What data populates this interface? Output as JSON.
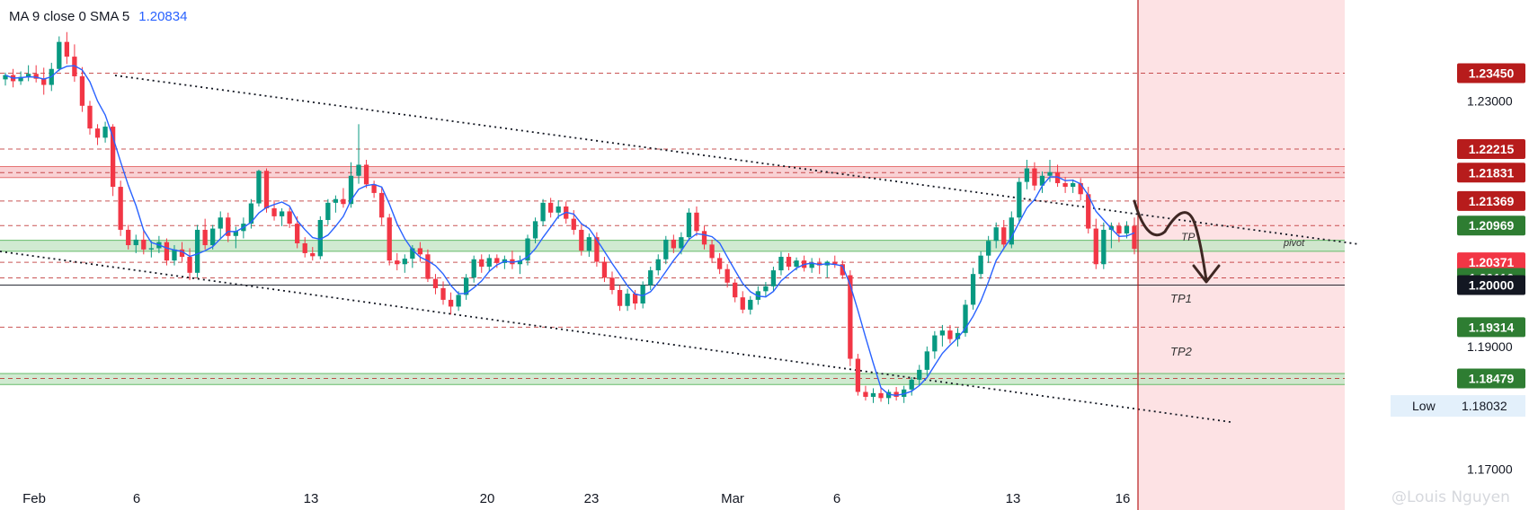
{
  "indicator": {
    "label": "MA 9 close 0 SMA 5",
    "value": "1.20834",
    "color": "#2962ff"
  },
  "watermark": "@Louis Nguyen",
  "colors": {
    "up": "#089981",
    "down": "#f23645",
    "ma": "#2962ff",
    "future_zone": "#fde2e4",
    "green_zone": "#c8e6c9",
    "red_zone": "#f8c9cc"
  },
  "chart_data": {
    "type": "candlestick",
    "ylim": [
      1.1665,
      1.2395
    ],
    "y_ticks": [
      "1.23000",
      "1.19000",
      "1.17000"
    ],
    "x_ticks": [
      "Feb",
      "6",
      "13",
      "20",
      "23",
      "Mar",
      "6",
      "13",
      "16"
    ],
    "price_tags": [
      {
        "value": "1.23450",
        "kind": "dark-red"
      },
      {
        "value": "1.22215",
        "kind": "dark-red"
      },
      {
        "value": "1.21831",
        "kind": "dark-red"
      },
      {
        "value": "1.21369",
        "kind": "dark-red"
      },
      {
        "value": "1.20969",
        "kind": "green"
      },
      {
        "value": "1.20371",
        "kind": "red"
      },
      {
        "value": "1.20116",
        "kind": "green"
      },
      {
        "value": "1.20000",
        "kind": "black"
      },
      {
        "value": "1.19314",
        "kind": "green"
      },
      {
        "value": "1.18479",
        "kind": "green"
      }
    ],
    "low_tag": {
      "label": "Low",
      "value": "1.18032"
    },
    "levels": [
      1.2345,
      1.22215,
      1.21831,
      1.21369,
      1.20969,
      1.20371,
      1.20116,
      1.2,
      1.19314,
      1.18479
    ],
    "zones": [
      {
        "from": 1.2175,
        "to": 1.2193,
        "color": "red"
      },
      {
        "from": 1.2055,
        "to": 1.2073,
        "color": "green"
      },
      {
        "from": 1.1838,
        "to": 1.1856,
        "color": "green"
      }
    ],
    "annotations": [
      "TP",
      "pivot",
      "TP1",
      "TP2"
    ],
    "candles": [
      [
        1.2335,
        1.2346,
        1.2325,
        1.2342
      ],
      [
        1.2342,
        1.2352,
        1.2322,
        1.2332
      ],
      [
        1.2332,
        1.2348,
        1.2326,
        1.2339
      ],
      [
        1.2339,
        1.2358,
        1.2332,
        1.2344
      ],
      [
        1.2344,
        1.2358,
        1.233,
        1.2336
      ],
      [
        1.2336,
        1.2354,
        1.231,
        1.2326
      ],
      [
        1.2326,
        1.2362,
        1.2316,
        1.2352
      ],
      [
        1.2352,
        1.2405,
        1.2348,
        1.2396
      ],
      [
        1.2396,
        1.2412,
        1.236,
        1.2372
      ],
      [
        1.2372,
        1.2392,
        1.2331,
        1.234
      ],
      [
        1.234,
        1.2355,
        1.2282,
        1.2292
      ],
      [
        1.2292,
        1.23,
        1.2245,
        1.2255
      ],
      [
        1.2255,
        1.2262,
        1.2228,
        1.224
      ],
      [
        1.224,
        1.2266,
        1.2232,
        1.2258
      ],
      [
        1.2258,
        1.2262,
        1.2145,
        1.216
      ],
      [
        1.216,
        1.217,
        1.208,
        1.209
      ],
      [
        1.209,
        1.2098,
        1.2058,
        1.2065
      ],
      [
        1.2065,
        1.2082,
        1.2052,
        1.2074
      ],
      [
        1.2074,
        1.209,
        1.205,
        1.2058
      ],
      [
        1.2058,
        1.2072,
        1.2045,
        1.206
      ],
      [
        1.206,
        1.208,
        1.2052,
        1.207
      ],
      [
        1.207,
        1.2076,
        1.2032,
        1.204
      ],
      [
        1.204,
        1.2065,
        1.2032,
        1.2058
      ],
      [
        1.2058,
        1.207,
        1.2038,
        1.2046
      ],
      [
        1.2046,
        1.206,
        1.2008,
        1.202
      ],
      [
        1.202,
        1.2098,
        1.2012,
        1.209
      ],
      [
        1.209,
        1.2108,
        1.2058,
        1.2065
      ],
      [
        1.2065,
        1.2098,
        1.2058,
        1.2092
      ],
      [
        1.2092,
        1.212,
        1.2076,
        1.211
      ],
      [
        1.211,
        1.2118,
        1.207,
        1.208
      ],
      [
        1.208,
        1.2095,
        1.206,
        1.2088
      ],
      [
        1.2088,
        1.211,
        1.2076,
        1.21
      ],
      [
        1.21,
        1.214,
        1.2092,
        1.2133
      ],
      [
        1.2133,
        1.2188,
        1.2128,
        1.2186
      ],
      [
        1.2186,
        1.219,
        1.2118,
        1.2125
      ],
      [
        1.2125,
        1.2138,
        1.2105,
        1.2112
      ],
      [
        1.2112,
        1.2125,
        1.2096,
        1.212
      ],
      [
        1.212,
        1.2126,
        1.2093,
        1.21
      ],
      [
        1.21,
        1.2112,
        1.206,
        1.2068
      ],
      [
        1.2068,
        1.2078,
        1.2045,
        1.2052
      ],
      [
        1.2052,
        1.2062,
        1.204,
        1.2047
      ],
      [
        1.2047,
        1.2112,
        1.2042,
        1.2106
      ],
      [
        1.2106,
        1.214,
        1.2098,
        1.2134
      ],
      [
        1.2134,
        1.2146,
        1.2118,
        1.214
      ],
      [
        1.214,
        1.2158,
        1.2126,
        1.2132
      ],
      [
        1.2132,
        1.22,
        1.2126,
        1.2178
      ],
      [
        1.2178,
        1.2262,
        1.2165,
        1.2196
      ],
      [
        1.2196,
        1.2204,
        1.2158,
        1.2164
      ],
      [
        1.2164,
        1.217,
        1.2142,
        1.215
      ],
      [
        1.215,
        1.216,
        1.2098,
        1.211
      ],
      [
        1.211,
        1.2116,
        1.2032,
        1.204
      ],
      [
        1.204,
        1.2052,
        1.2024,
        1.2034
      ],
      [
        1.2034,
        1.205,
        1.202,
        1.2043
      ],
      [
        1.2043,
        1.2065,
        1.2028,
        1.206
      ],
      [
        1.206,
        1.207,
        1.2038,
        1.205
      ],
      [
        1.205,
        1.2058,
        1.2005,
        1.201
      ],
      [
        1.201,
        1.2018,
        1.1985,
        1.1995
      ],
      [
        1.1995,
        1.2006,
        1.1968,
        1.1976
      ],
      [
        1.1976,
        1.1988,
        1.1952,
        1.1965
      ],
      [
        1.1965,
        1.199,
        1.1958,
        1.1984
      ],
      [
        1.1984,
        1.2018,
        1.1976,
        1.2012
      ],
      [
        1.2012,
        1.2048,
        1.2004,
        1.2042
      ],
      [
        1.2042,
        1.205,
        1.202,
        1.203
      ],
      [
        1.203,
        1.205,
        1.2022,
        1.2044
      ],
      [
        1.2044,
        1.205,
        1.2028,
        1.2036
      ],
      [
        1.2036,
        1.2048,
        1.2026,
        1.2042
      ],
      [
        1.2042,
        1.2056,
        1.2026,
        1.2034
      ],
      [
        1.2034,
        1.2048,
        1.2018,
        1.204
      ],
      [
        1.204,
        1.2082,
        1.2032,
        1.2076
      ],
      [
        1.2076,
        1.211,
        1.2068,
        1.2104
      ],
      [
        1.2104,
        1.214,
        1.2096,
        1.2134
      ],
      [
        1.2134,
        1.2142,
        1.211,
        1.2118
      ],
      [
        1.2118,
        1.2138,
        1.2108,
        1.2128
      ],
      [
        1.2128,
        1.2136,
        1.21,
        1.2108
      ],
      [
        1.2108,
        1.2122,
        1.2082,
        1.209
      ],
      [
        1.209,
        1.21,
        1.2048,
        1.2056
      ],
      [
        1.2056,
        1.2084,
        1.2046,
        1.2078
      ],
      [
        1.2078,
        1.2086,
        1.203,
        1.2038
      ],
      [
        1.2038,
        1.2046,
        1.2005,
        1.2012
      ],
      [
        1.2012,
        1.2022,
        1.1985,
        1.1992
      ],
      [
        1.1992,
        1.2,
        1.1958,
        1.1966
      ],
      [
        1.1966,
        1.1994,
        1.1958,
        1.1986
      ],
      [
        1.1986,
        1.1992,
        1.196,
        1.197
      ],
      [
        1.197,
        1.2006,
        1.1962,
        1.2
      ],
      [
        1.2,
        1.203,
        1.1992,
        1.2024
      ],
      [
        1.2024,
        1.205,
        1.2016,
        1.2042
      ],
      [
        1.2042,
        1.208,
        1.2034,
        1.2074
      ],
      [
        1.2074,
        1.2082,
        1.2052,
        1.206
      ],
      [
        1.206,
        1.2086,
        1.205,
        1.2078
      ],
      [
        1.2078,
        1.2125,
        1.2072,
        1.2118
      ],
      [
        1.2118,
        1.2128,
        1.208,
        1.2088
      ],
      [
        1.2088,
        1.2096,
        1.2058,
        1.2066
      ],
      [
        1.2066,
        1.2074,
        1.2036,
        1.2044
      ],
      [
        1.2044,
        1.2052,
        1.2018,
        1.2026
      ],
      [
        1.2026,
        1.2034,
        1.1996,
        1.2004
      ],
      [
        1.2004,
        1.201,
        1.1972,
        1.198
      ],
      [
        1.198,
        1.199,
        1.1954,
        1.196
      ],
      [
        1.196,
        1.1982,
        1.1952,
        1.1976
      ],
      [
        1.1976,
        1.1998,
        1.1968,
        1.199
      ],
      [
        1.199,
        1.2005,
        1.198,
        1.1998
      ],
      [
        1.1998,
        1.203,
        1.199,
        1.2024
      ],
      [
        1.2024,
        1.2054,
        1.2016,
        1.2046
      ],
      [
        1.2046,
        1.2052,
        1.2024,
        1.203
      ],
      [
        1.203,
        1.2045,
        1.2024,
        1.204
      ],
      [
        1.204,
        1.2048,
        1.2022,
        1.2028
      ],
      [
        1.2028,
        1.2044,
        1.202,
        1.2036
      ],
      [
        1.2036,
        1.2044,
        1.2018,
        1.2032
      ],
      [
        1.2032,
        1.204,
        1.2012,
        1.2038
      ],
      [
        1.2038,
        1.2048,
        1.2028,
        1.2034
      ],
      [
        1.2034,
        1.204,
        1.201,
        1.2016
      ],
      [
        1.2016,
        1.2024,
        1.1868,
        1.188
      ],
      [
        1.188,
        1.1888,
        1.182,
        1.1826
      ],
      [
        1.1826,
        1.1836,
        1.1812,
        1.1818
      ],
      [
        1.1818,
        1.1832,
        1.1808,
        1.1824
      ],
      [
        1.1824,
        1.1832,
        1.181,
        1.1816
      ],
      [
        1.1816,
        1.183,
        1.1806,
        1.1826
      ],
      [
        1.1826,
        1.1834,
        1.1812,
        1.1818
      ],
      [
        1.1818,
        1.1836,
        1.1808,
        1.183
      ],
      [
        1.183,
        1.185,
        1.182,
        1.1846
      ],
      [
        1.1846,
        1.187,
        1.1836,
        1.1862
      ],
      [
        1.1862,
        1.19,
        1.1852,
        1.1892
      ],
      [
        1.1892,
        1.1925,
        1.188,
        1.1918
      ],
      [
        1.1918,
        1.1935,
        1.19,
        1.1926
      ],
      [
        1.1926,
        1.1935,
        1.1905,
        1.1912
      ],
      [
        1.1912,
        1.193,
        1.19,
        1.1922
      ],
      [
        1.1922,
        1.1976,
        1.1916,
        1.1968
      ],
      [
        1.1968,
        1.2028,
        1.196,
        1.2018
      ],
      [
        1.2018,
        1.2055,
        1.201,
        1.2048
      ],
      [
        1.2048,
        1.208,
        1.2036,
        1.2072
      ],
      [
        1.2072,
        1.2102,
        1.206,
        1.2094
      ],
      [
        1.2094,
        1.2106,
        1.2058,
        1.2066
      ],
      [
        1.2066,
        1.212,
        1.206,
        1.211
      ],
      [
        1.211,
        1.2175,
        1.21,
        1.2168
      ],
      [
        1.2168,
        1.2204,
        1.2156,
        1.219
      ],
      [
        1.219,
        1.22,
        1.2154,
        1.2162
      ],
      [
        1.2162,
        1.2185,
        1.215,
        1.2178
      ],
      [
        1.2178,
        1.2204,
        1.2168,
        1.2184
      ],
      [
        1.2184,
        1.2196,
        1.216,
        1.2166
      ],
      [
        1.2166,
        1.2176,
        1.215,
        1.216
      ],
      [
        1.216,
        1.2172,
        1.215,
        1.2166
      ],
      [
        1.2166,
        1.2174,
        1.2138,
        1.2148
      ],
      [
        1.2148,
        1.216,
        1.2084,
        1.2092
      ],
      [
        1.2092,
        1.2108,
        1.2026,
        1.2034
      ],
      [
        1.2034,
        1.2102,
        1.2026,
        1.209
      ],
      [
        1.209,
        1.2102,
        1.206,
        1.2096
      ],
      [
        1.2096,
        1.2102,
        1.207,
        1.2084
      ],
      [
        1.2084,
        1.2104,
        1.2076,
        1.2096
      ],
      [
        1.2096,
        1.211,
        1.205,
        1.2059
      ]
    ]
  }
}
